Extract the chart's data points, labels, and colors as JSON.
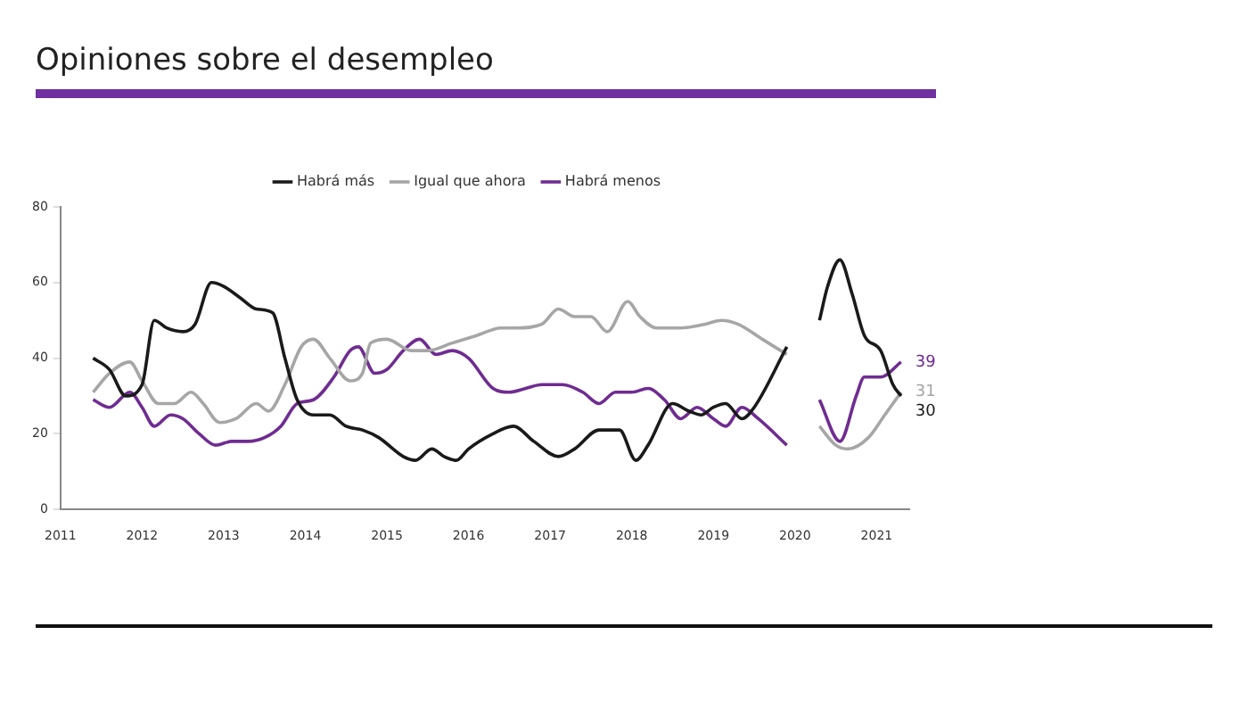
{
  "chart_data": {
    "type": "line",
    "title": "Opiniones sobre el desempleo",
    "xlim": [
      2011,
      2021.4
    ],
    "xticks": [
      2011,
      2012,
      2013,
      2014,
      2015,
      2016,
      2017,
      2018,
      2019,
      2020,
      2021
    ],
    "ylim": [
      0,
      80
    ],
    "yticks": [
      0,
      20,
      40,
      60,
      80
    ],
    "grid": false,
    "legend": "top",
    "marker": "none",
    "line_style": "solid",
    "series": [
      {
        "name": "Habrá más",
        "color": "#1a1a1a",
        "x": [
          2011.4,
          2011.6,
          2011.8,
          2012.0,
          2012.15,
          2012.3,
          2012.5,
          2012.65,
          2012.85,
          2013.0,
          2013.2,
          2013.4,
          2013.6,
          2013.75,
          2013.9,
          2014.1,
          2014.3,
          2014.5,
          2014.7,
          2014.9,
          2015.2,
          2015.35,
          2015.55,
          2015.7,
          2015.85,
          2016.0,
          2016.3,
          2016.55,
          2016.8,
          2017.1,
          2017.3,
          2017.6,
          2017.85,
          2018.05,
          2018.2,
          2018.5,
          2018.7,
          2018.85,
          2019.0,
          2019.15,
          2019.35,
          2019.5,
          2019.9,
          2020.1,
          2020.3,
          2020.4,
          2020.55,
          2020.7,
          2020.85,
          2021.05,
          2021.2,
          2021.3
        ],
        "values": [
          40,
          37,
          30,
          33,
          50,
          48,
          47,
          49,
          60,
          59,
          56,
          53,
          52,
          40,
          29,
          25,
          25,
          22,
          21,
          19,
          14,
          13,
          16,
          14,
          13,
          16,
          20,
          22,
          18,
          14,
          16,
          21,
          21,
          13,
          17,
          28,
          26,
          25,
          27,
          28,
          24,
          27,
          43,
          null,
          50,
          59,
          66,
          57,
          46,
          42,
          33,
          30
        ],
        "value_labels": [
          null,
          null,
          null,
          null,
          null,
          null,
          null,
          null,
          null,
          null,
          null,
          null,
          null,
          null,
          null,
          null,
          null,
          null,
          null,
          null,
          null,
          null,
          null,
          null,
          null,
          null,
          null,
          null,
          null,
          null,
          null,
          null,
          null,
          null,
          null,
          null,
          null,
          null,
          null,
          null,
          null,
          null,
          null,
          null,
          null,
          null,
          null,
          null,
          null,
          null,
          null,
          "30"
        ]
      },
      {
        "name": "Igual que ahora",
        "color": "#a6a6a6",
        "x": [
          2011.4,
          2011.6,
          2011.85,
          2012.0,
          2012.2,
          2012.4,
          2012.6,
          2012.75,
          2012.95,
          2013.15,
          2013.4,
          2013.55,
          2013.75,
          2013.95,
          2014.1,
          2014.3,
          2014.55,
          2014.7,
          2014.8,
          2015.0,
          2015.3,
          2015.5,
          2015.8,
          2016.1,
          2016.4,
          2016.6,
          2016.9,
          2017.1,
          2017.3,
          2017.5,
          2017.7,
          2017.95,
          2018.1,
          2018.3,
          2018.6,
          2018.9,
          2019.1,
          2019.3,
          2019.6,
          2019.9,
          2020.1,
          2020.3,
          2020.5,
          2020.65,
          2020.9,
          2021.1,
          2021.3
        ],
        "values": [
          31,
          36,
          39,
          34,
          28,
          28,
          31,
          28,
          23,
          24,
          28,
          26,
          33,
          43,
          45,
          40,
          34,
          36,
          44,
          45,
          42,
          42,
          44,
          46,
          48,
          48,
          49,
          53,
          51,
          51,
          47,
          55,
          51,
          48,
          48,
          49,
          50,
          49,
          45,
          41,
          null,
          22,
          17,
          16,
          19,
          25,
          31
        ],
        "value_labels": [
          null,
          null,
          null,
          null,
          null,
          null,
          null,
          null,
          null,
          null,
          null,
          null,
          null,
          null,
          null,
          null,
          null,
          null,
          null,
          null,
          null,
          null,
          null,
          null,
          null,
          null,
          null,
          null,
          null,
          null,
          null,
          null,
          null,
          null,
          null,
          null,
          null,
          null,
          null,
          null,
          null,
          null,
          null,
          null,
          null,
          null,
          "31"
        ]
      },
      {
        "name": "Habrá menos",
        "color": "#6f2c91",
        "x": [
          2011.4,
          2011.6,
          2011.85,
          2012.0,
          2012.15,
          2012.35,
          2012.5,
          2012.7,
          2012.9,
          2013.1,
          2013.3,
          2013.5,
          2013.7,
          2013.9,
          2014.1,
          2014.35,
          2014.55,
          2014.65,
          2014.85,
          2015.0,
          2015.2,
          2015.4,
          2015.6,
          2015.8,
          2016.0,
          2016.3,
          2016.5,
          2016.7,
          2016.9,
          2017.15,
          2017.4,
          2017.6,
          2017.8,
          2018.0,
          2018.2,
          2018.4,
          2018.6,
          2018.8,
          2019.0,
          2019.15,
          2019.35,
          2019.55,
          2019.9,
          2020.1,
          2020.3,
          2020.55,
          2020.75,
          2020.85,
          2021.05,
          2021.3
        ],
        "values": [
          29,
          27,
          31,
          27,
          22,
          25,
          24,
          20,
          17,
          18,
          18,
          19,
          22,
          28,
          29,
          35,
          42,
          43,
          36,
          37,
          42,
          45,
          41,
          42,
          40,
          32,
          31,
          32,
          33,
          33,
          31,
          28,
          31,
          31,
          32,
          29,
          24,
          27,
          24,
          22,
          27,
          24,
          17,
          null,
          29,
          18,
          30,
          35,
          35,
          39
        ],
        "value_labels": [
          null,
          null,
          null,
          null,
          null,
          null,
          null,
          null,
          null,
          null,
          null,
          null,
          null,
          null,
          null,
          null,
          null,
          null,
          null,
          null,
          null,
          null,
          null,
          null,
          null,
          null,
          null,
          null,
          null,
          null,
          null,
          null,
          null,
          null,
          null,
          null,
          null,
          null,
          null,
          null,
          null,
          null,
          null,
          null,
          null,
          null,
          null,
          null,
          null,
          "39"
        ]
      }
    ]
  }
}
